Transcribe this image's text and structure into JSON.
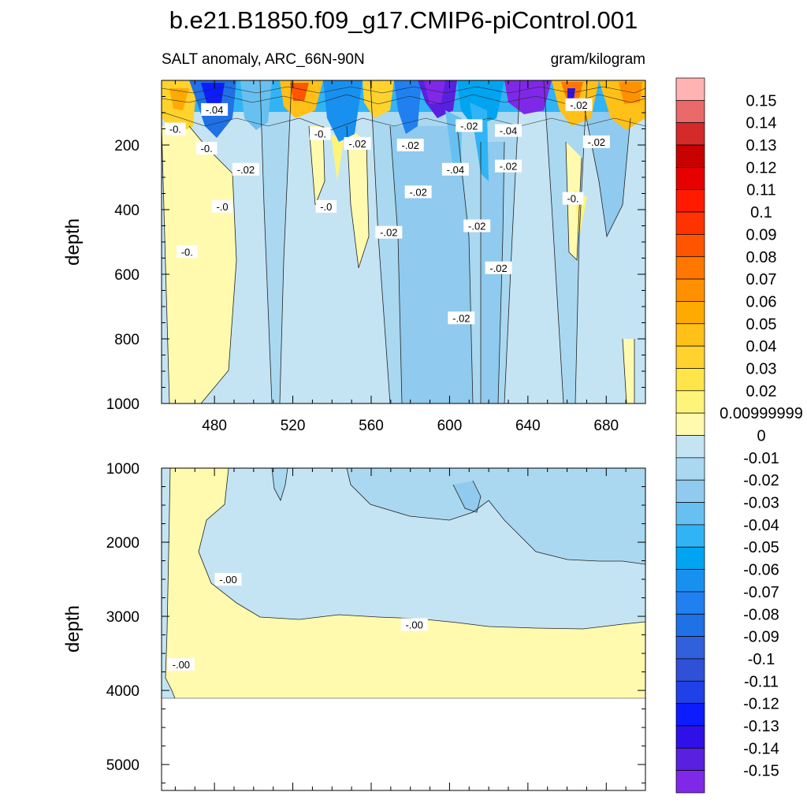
{
  "chart_data": {
    "type": "heatmap",
    "title": "b.e21.B1850.f09_g17.CMIP6-piControl.001",
    "left_subtitle": "SALT anomaly, ARC_66N-90N",
    "right_subtitle": "gram/kilogram",
    "upper_panel": {
      "ylabel": "depth",
      "xlim": [
        453,
        700
      ],
      "ylim": [
        0,
        1000
      ],
      "x_ticks": [
        480,
        520,
        560,
        600,
        640,
        680
      ],
      "y_ticks": [
        200,
        400,
        600,
        800,
        1000
      ],
      "contour_labels": [
        {
          "text": "-.04",
          "x": 480,
          "y": 90
        },
        {
          "text": "-0.",
          "x": 460,
          "y": 150
        },
        {
          "text": "-0.",
          "x": 476,
          "y": 210
        },
        {
          "text": "-.02",
          "x": 496,
          "y": 275
        },
        {
          "text": "-.0",
          "x": 484,
          "y": 390
        },
        {
          "text": "-.0",
          "x": 537,
          "y": 390
        },
        {
          "text": "-0.",
          "x": 466,
          "y": 530
        },
        {
          "text": "-0.",
          "x": 534,
          "y": 165
        },
        {
          "text": "-.02",
          "x": 553,
          "y": 195
        },
        {
          "text": "-.02",
          "x": 580,
          "y": 200
        },
        {
          "text": "-.04",
          "x": 603,
          "y": 275
        },
        {
          "text": "-.02",
          "x": 610,
          "y": 140
        },
        {
          "text": "-.04",
          "x": 630,
          "y": 155
        },
        {
          "text": "-.02",
          "x": 630,
          "y": 265
        },
        {
          "text": "-.02",
          "x": 666,
          "y": 75
        },
        {
          "text": "-.02",
          "x": 675,
          "y": 190
        },
        {
          "text": "-0.",
          "x": 663,
          "y": 365
        },
        {
          "text": "-.02",
          "x": 584,
          "y": 345
        },
        {
          "text": "-.02",
          "x": 569,
          "y": 470
        },
        {
          "text": "-.02",
          "x": 614,
          "y": 450
        },
        {
          "text": "-.02",
          "x": 625,
          "y": 580
        },
        {
          "text": "-.02",
          "x": 606,
          "y": 735
        }
      ]
    },
    "lower_panel": {
      "ylabel": "depth",
      "xlim": [
        453,
        700
      ],
      "ylim": [
        1000,
        5350
      ],
      "y_ticks": [
        1000,
        2000,
        3000,
        4000,
        5000
      ],
      "contour_labels": [
        {
          "text": "-.00",
          "x": 487,
          "y": 2500
        },
        {
          "text": "-.00",
          "x": 582,
          "y": 3110
        },
        {
          "text": "-.00",
          "x": 463,
          "y": 3650
        }
      ]
    },
    "colorbar": {
      "labels": [
        "0.15",
        "0.14",
        "0.13",
        "0.12",
        "0.11",
        "0.1",
        "0.09",
        "0.08",
        "0.07",
        "0.06",
        "0.05",
        "0.04",
        "0.03",
        "0.02",
        "0.00999999",
        "0",
        "-0.01",
        "-0.02",
        "-0.03",
        "-0.04",
        "-0.05",
        "-0.06",
        "-0.07",
        "-0.08",
        "-0.09",
        "-0.1",
        "-0.11",
        "-0.12",
        "-0.13",
        "-0.14",
        "-0.15"
      ],
      "colors": [
        "#ffb3b3",
        "#e86a6a",
        "#d42a2a",
        "#c80000",
        "#e60000",
        "#ff1a00",
        "#ff3300",
        "#ff5500",
        "#ff7700",
        "#ff9100",
        "#ffaa00",
        "#ffc018",
        "#ffd22e",
        "#ffe54a",
        "#fff47a",
        "#fffaae",
        "#c4e4f4",
        "#aad8f0",
        "#90caee",
        "#68c0f0",
        "#30b4f5",
        "#00a4f0",
        "#1890f0",
        "#2080f0",
        "#2070e6",
        "#3060dc",
        "#3050d8",
        "#2040e8",
        "#0c1cff",
        "#3010e8",
        "#5a20e0",
        "#8028e8"
      ]
    }
  }
}
